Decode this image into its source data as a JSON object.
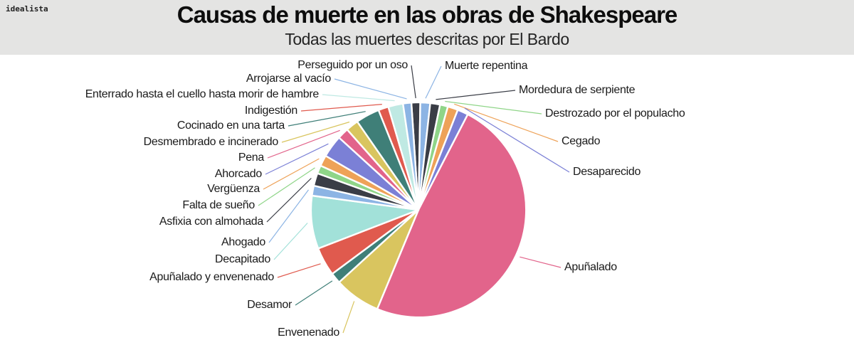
{
  "header": {
    "logo": "idealista",
    "title": "Causas de muerte en las obras de Shakespeare",
    "subtitle": "Todas las muertes descritas por El Bardo",
    "background": "#e4e4e3"
  },
  "chart_data": {
    "type": "pie",
    "title": "Causas de muerte en las obras de Shakespeare",
    "subtitle": "Todas las muertes descritas por El Bardo",
    "legend": "none",
    "labels_style": "callout lines outside pie, line color matches slice color",
    "gap_color": "#ffffff",
    "start_angle_deg": -3.8,
    "slices": [
      {
        "label": "Perseguido por un oso",
        "percent": 1.3,
        "angle_deg": 4.8,
        "color": "#3a3d46"
      },
      {
        "label": "Muerte repentina",
        "percent": 1.5,
        "angle_deg": 5.3,
        "color": "#8cb4e4"
      },
      {
        "label": "Mordedura de serpiente",
        "percent": 1.5,
        "angle_deg": 5.3,
        "color": "#3a3d46"
      },
      {
        "label": "Destrozado por el populacho",
        "percent": 1.2,
        "angle_deg": 4.3,
        "color": "#8fd588"
      },
      {
        "label": "Cegado",
        "percent": 1.6,
        "angle_deg": 5.6,
        "color": "#eea258"
      },
      {
        "label": "Desaparecido",
        "percent": 1.6,
        "angle_deg": 5.8,
        "color": "#7b80d6"
      },
      {
        "label": "Apuñalado",
        "percent": 48.7,
        "angle_deg": 175.3,
        "color": "#e2648b"
      },
      {
        "label": "Envenenado",
        "percent": 6.9,
        "angle_deg": 25.0,
        "color": "#d9c55f"
      },
      {
        "label": "Desamor",
        "percent": 1.6,
        "angle_deg": 5.8,
        "color": "#3f7f78"
      },
      {
        "label": "Apuñalado y envenenado",
        "percent": 4.3,
        "angle_deg": 15.5,
        "color": "#e05a4e"
      },
      {
        "label": "Decapitado",
        "percent": 8.0,
        "angle_deg": 28.7,
        "color": "#a2e1d9"
      },
      {
        "label": "Ahogado",
        "percent": 1.5,
        "angle_deg": 5.4,
        "color": "#8cb4e4"
      },
      {
        "label": "Asfixia con almohada",
        "percent": 1.9,
        "angle_deg": 6.9,
        "color": "#3a3d46"
      },
      {
        "label": "Falta de sueño",
        "percent": 1.2,
        "angle_deg": 4.4,
        "color": "#8fd588"
      },
      {
        "label": "Vergüenza",
        "percent": 1.6,
        "angle_deg": 5.9,
        "color": "#eea258"
      },
      {
        "label": "Ahorcado",
        "percent": 3.4,
        "angle_deg": 12.1,
        "color": "#7b80d6"
      },
      {
        "label": "Pena",
        "percent": 1.7,
        "angle_deg": 6.1,
        "color": "#e2648b"
      },
      {
        "label": "Desmembrado e incinerado",
        "percent": 1.9,
        "angle_deg": 6.9,
        "color": "#d9c55f"
      },
      {
        "label": "Cocinado en una tarta",
        "percent": 3.6,
        "angle_deg": 12.9,
        "color": "#3f7f78"
      },
      {
        "label": "Indigestión",
        "percent": 1.5,
        "angle_deg": 5.5,
        "color": "#e05a4e"
      },
      {
        "label": "Enterrado hasta el cuello hasta morir de hambre",
        "percent": 2.2,
        "angle_deg": 8.0,
        "color": "#bfe9e3"
      },
      {
        "label": "Arrojarse al vacío",
        "percent": 1.3,
        "angle_deg": 4.5,
        "color": "#8cb4e4"
      }
    ]
  }
}
